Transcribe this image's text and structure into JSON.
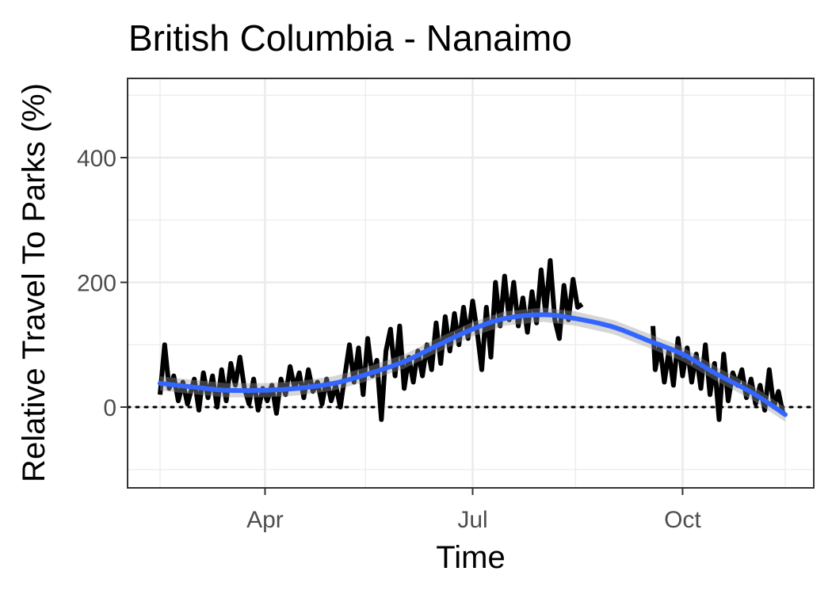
{
  "chart_data": {
    "type": "line",
    "title": "British Columbia - Nanaimo",
    "xlabel": "Time",
    "ylabel": "Relative Travel To Parks (%)",
    "x_range": [
      "2020-02-15",
      "2020-11-15"
    ],
    "ylim": [
      -130,
      530
    ],
    "x_ticks": [
      {
        "date": "2020-04-01",
        "label": "Apr"
      },
      {
        "date": "2020-07-01",
        "label": "Jul"
      },
      {
        "date": "2020-10-01",
        "label": "Oct"
      }
    ],
    "x_minor_ticks": [
      "2020-02-15",
      "2020-05-15",
      "2020-08-15",
      "2020-11-15"
    ],
    "y_ticks": [
      0,
      200,
      400
    ],
    "y_minor_ticks": [
      -100,
      100,
      300,
      500
    ],
    "grid": true,
    "reference_line": {
      "y": 0,
      "style": "dotted"
    },
    "series": [
      {
        "color": "#000000",
        "points": [
          [
            "2020-02-15",
            20
          ],
          [
            "2020-02-17",
            100
          ],
          [
            "2020-02-19",
            30
          ],
          [
            "2020-02-21",
            50
          ],
          [
            "2020-02-23",
            10
          ],
          [
            "2020-02-25",
            40
          ],
          [
            "2020-02-27",
            5
          ],
          [
            "2020-03-01",
            45
          ],
          [
            "2020-03-03",
            -5
          ],
          [
            "2020-03-05",
            55
          ],
          [
            "2020-03-07",
            15
          ],
          [
            "2020-03-09",
            50
          ],
          [
            "2020-03-11",
            0
          ],
          [
            "2020-03-13",
            60
          ],
          [
            "2020-03-15",
            10
          ],
          [
            "2020-03-17",
            70
          ],
          [
            "2020-03-19",
            35
          ],
          [
            "2020-03-21",
            80
          ],
          [
            "2020-03-23",
            30
          ],
          [
            "2020-03-25",
            5
          ],
          [
            "2020-03-27",
            45
          ],
          [
            "2020-03-29",
            -5
          ],
          [
            "2020-03-31",
            30
          ],
          [
            "2020-04-02",
            10
          ],
          [
            "2020-04-04",
            35
          ],
          [
            "2020-04-06",
            -10
          ],
          [
            "2020-04-08",
            45
          ],
          [
            "2020-04-10",
            20
          ],
          [
            "2020-04-12",
            65
          ],
          [
            "2020-04-14",
            30
          ],
          [
            "2020-04-16",
            55
          ],
          [
            "2020-04-18",
            15
          ],
          [
            "2020-04-20",
            60
          ],
          [
            "2020-04-22",
            25
          ],
          [
            "2020-04-24",
            40
          ],
          [
            "2020-04-26",
            5
          ],
          [
            "2020-04-28",
            45
          ],
          [
            "2020-04-30",
            10
          ],
          [
            "2020-05-02",
            35
          ],
          [
            "2020-05-04",
            0
          ],
          [
            "2020-05-06",
            50
          ],
          [
            "2020-05-08",
            100
          ],
          [
            "2020-05-10",
            40
          ],
          [
            "2020-05-12",
            95
          ],
          [
            "2020-05-14",
            20
          ],
          [
            "2020-05-16",
            110
          ],
          [
            "2020-05-18",
            50
          ],
          [
            "2020-05-20",
            75
          ],
          [
            "2020-05-22",
            -20
          ],
          [
            "2020-05-24",
            90
          ],
          [
            "2020-05-26",
            125
          ],
          [
            "2020-05-28",
            50
          ],
          [
            "2020-05-30",
            130
          ],
          [
            "2020-06-01",
            30
          ],
          [
            "2020-06-03",
            80
          ],
          [
            "2020-06-05",
            40
          ],
          [
            "2020-06-07",
            90
          ],
          [
            "2020-06-09",
            50
          ],
          [
            "2020-06-11",
            100
          ],
          [
            "2020-06-13",
            60
          ],
          [
            "2020-06-15",
            135
          ],
          [
            "2020-06-17",
            70
          ],
          [
            "2020-06-19",
            145
          ],
          [
            "2020-06-21",
            90
          ],
          [
            "2020-06-23",
            150
          ],
          [
            "2020-06-25",
            100
          ],
          [
            "2020-06-27",
            160
          ],
          [
            "2020-06-29",
            110
          ],
          [
            "2020-07-01",
            170
          ],
          [
            "2020-07-03",
            120
          ],
          [
            "2020-07-05",
            60
          ],
          [
            "2020-07-07",
            160
          ],
          [
            "2020-07-09",
            80
          ],
          [
            "2020-07-11",
            200
          ],
          [
            "2020-07-13",
            130
          ],
          [
            "2020-07-15",
            210
          ],
          [
            "2020-07-17",
            140
          ],
          [
            "2020-07-19",
            200
          ],
          [
            "2020-07-21",
            130
          ],
          [
            "2020-07-23",
            175
          ],
          [
            "2020-07-25",
            120
          ],
          [
            "2020-07-27",
            185
          ],
          [
            "2020-07-29",
            135
          ],
          [
            "2020-07-31",
            220
          ],
          [
            "2020-08-02",
            150
          ],
          [
            "2020-08-04",
            235
          ],
          [
            "2020-08-06",
            140
          ],
          [
            "2020-08-08",
            110
          ],
          [
            "2020-08-10",
            195
          ],
          [
            "2020-08-12",
            140
          ],
          [
            "2020-08-14",
            205
          ],
          [
            "2020-08-16",
            160
          ],
          [
            "2020-08-18",
            165
          ],
          null,
          [
            "2020-09-18",
            130
          ],
          [
            "2020-09-19",
            60
          ],
          [
            "2020-09-21",
            100
          ],
          [
            "2020-09-23",
            40
          ],
          [
            "2020-09-25",
            90
          ],
          [
            "2020-09-27",
            35
          ],
          [
            "2020-09-29",
            110
          ],
          [
            "2020-10-01",
            50
          ],
          [
            "2020-10-03",
            95
          ],
          [
            "2020-10-05",
            40
          ],
          [
            "2020-10-07",
            85
          ],
          [
            "2020-10-09",
            30
          ],
          [
            "2020-10-11",
            100
          ],
          [
            "2020-10-13",
            20
          ],
          [
            "2020-10-15",
            70
          ],
          [
            "2020-10-17",
            -20
          ],
          [
            "2020-10-19",
            85
          ],
          [
            "2020-10-21",
            10
          ],
          [
            "2020-10-23",
            55
          ],
          [
            "2020-10-25",
            35
          ],
          [
            "2020-10-27",
            60
          ],
          [
            "2020-10-29",
            15
          ],
          [
            "2020-10-31",
            45
          ],
          [
            "2020-11-02",
            5
          ],
          [
            "2020-11-04",
            35
          ],
          [
            "2020-11-06",
            -5
          ],
          [
            "2020-11-08",
            60
          ],
          [
            "2020-11-10",
            0
          ],
          [
            "2020-11-12",
            25
          ],
          [
            "2020-11-14",
            -10
          ]
        ]
      },
      {
        "color": "#3366ff",
        "smoothed": true,
        "points": [
          [
            "2020-02-15",
            38
          ],
          [
            "2020-03-01",
            32
          ],
          [
            "2020-03-15",
            27
          ],
          [
            "2020-04-01",
            27
          ],
          [
            "2020-04-15",
            30
          ],
          [
            "2020-05-01",
            38
          ],
          [
            "2020-05-15",
            52
          ],
          [
            "2020-06-01",
            73
          ],
          [
            "2020-06-15",
            98
          ],
          [
            "2020-07-01",
            125
          ],
          [
            "2020-07-15",
            142
          ],
          [
            "2020-08-01",
            148
          ],
          [
            "2020-08-15",
            142
          ],
          [
            "2020-09-01",
            128
          ],
          [
            "2020-09-15",
            108
          ],
          [
            "2020-10-01",
            85
          ],
          [
            "2020-10-15",
            55
          ],
          [
            "2020-11-01",
            22
          ],
          [
            "2020-11-15",
            -12
          ]
        ]
      }
    ]
  }
}
